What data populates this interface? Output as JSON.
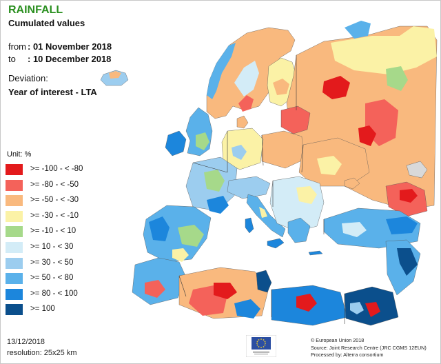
{
  "header": {
    "title": "RAINFALL",
    "subtitle": "Cumulated values",
    "from_label": "from",
    "from_value": ": 01 November 2018",
    "to_label": "to",
    "to_value": ": 10 December 2018",
    "deviation_label": "Deviation:",
    "deviation_value": "Year of interest - LTA"
  },
  "legend": {
    "unit": "Unit:  %",
    "classes": [
      {
        "label": ">= -100 - < -80",
        "color": "#e31a1c"
      },
      {
        "label": ">= -80 - < -50",
        "color": "#f4625a"
      },
      {
        "label": ">= -50 - < -30",
        "color": "#f9b97e"
      },
      {
        "label": ">= -30 - < -10",
        "color": "#fbf2a6"
      },
      {
        "label": ">= -10 - < 10",
        "color": "#a6d98a"
      },
      {
        "label": ">= 10 - < 30",
        "color": "#d3ecf7"
      },
      {
        "label": ">= 30 - < 50",
        "color": "#9ccdef"
      },
      {
        "label": ">= 50 - < 80",
        "color": "#5ab1ea"
      },
      {
        "label": ">= 80 - < 100",
        "color": "#1c86dc"
      },
      {
        "label": ">= 100",
        "color": "#0b4f8c"
      }
    ]
  },
  "footer": {
    "date": "13/12/2018",
    "resolution": "resolution: 25x25 km",
    "credit_1": "© European Union 2018",
    "credit_2": "Source: Joint Research Centre (JRC CGMS 12EUN)",
    "credit_3": "Processed by: Alterra consortium"
  },
  "map": {
    "sea_color": "#ffffff",
    "land_gray": "#d9d9d9",
    "border_color": "#3a3a3a"
  }
}
